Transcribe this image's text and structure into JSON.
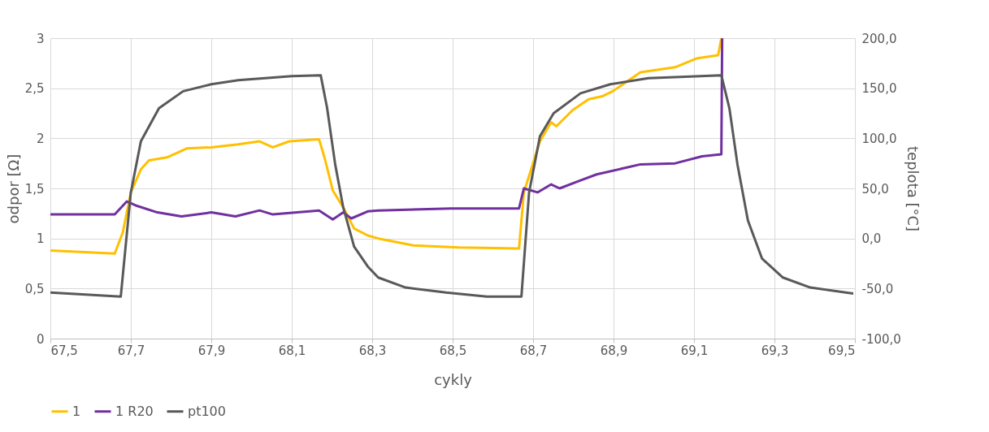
{
  "chart_data": {
    "type": "line",
    "xlabel": "cykly",
    "ylabel": "odpor [Ω]",
    "y2label": "teplota [°C]",
    "xlim": [
      67.5,
      69.5
    ],
    "ylim": [
      0,
      3
    ],
    "y2lim": [
      -100,
      200
    ],
    "xticks": [
      {
        "value": 67.5,
        "label": "67,5"
      },
      {
        "value": 67.7,
        "label": "67,7"
      },
      {
        "value": 67.9,
        "label": "67,9"
      },
      {
        "value": 68.1,
        "label": "68,1"
      },
      {
        "value": 68.3,
        "label": "68,3"
      },
      {
        "value": 68.5,
        "label": "68,5"
      },
      {
        "value": 68.7,
        "label": "68,7"
      },
      {
        "value": 68.9,
        "label": "68,9"
      },
      {
        "value": 69.1,
        "label": "69,1"
      },
      {
        "value": 69.3,
        "label": "69,3"
      },
      {
        "value": 69.5,
        "label": "69,5"
      }
    ],
    "yticks": [
      0,
      {
        "value": 0.5,
        "label": "0,5"
      },
      1,
      {
        "value": 1.5,
        "label": "1,5"
      },
      2,
      {
        "value": 2.5,
        "label": "2,5"
      },
      3
    ],
    "y2ticks": [
      {
        "value": -100,
        "label": "-100,0"
      },
      {
        "value": -50,
        "label": "-50,0"
      },
      {
        "value": 0,
        "label": "0,0"
      },
      {
        "value": 50,
        "label": "50,0"
      },
      {
        "value": 100,
        "label": "100,0"
      },
      {
        "value": 150,
        "label": "150,0"
      },
      {
        "value": 200,
        "label": "200,0"
      }
    ],
    "grid": true,
    "legend": "bottom",
    "line_style": "solid",
    "marker": "none",
    "series": [
      {
        "name": "1",
        "color": "#ffc000",
        "x": [
          67.5,
          67.66,
          67.68,
          67.7,
          67.725,
          67.745,
          67.79,
          67.84,
          67.9,
          67.967,
          68.02,
          68.053,
          68.094,
          68.168,
          68.182,
          68.202,
          68.228,
          68.255,
          68.289,
          68.315,
          68.403,
          68.516,
          68.665,
          68.677,
          68.717,
          68.745,
          68.758,
          68.798,
          68.838,
          68.872,
          68.898,
          68.967,
          69.053,
          69.108,
          69.16,
          69.168
        ],
        "values": [
          0.88,
          0.85,
          1.06,
          1.46,
          1.69,
          1.78,
          1.81,
          1.9,
          1.91,
          1.94,
          1.97,
          1.91,
          1.97,
          1.99,
          1.8,
          1.48,
          1.31,
          1.1,
          1.03,
          1.0,
          0.93,
          0.91,
          0.9,
          1.46,
          1.97,
          2.16,
          2.12,
          2.28,
          2.39,
          2.42,
          2.47,
          2.66,
          2.71,
          2.8,
          2.83,
          3.0
        ]
      },
      {
        "name": "1 R20",
        "color": "#7030a0",
        "x": [
          67.5,
          67.66,
          67.69,
          67.712,
          67.766,
          67.826,
          67.9,
          67.96,
          68.02,
          68.053,
          68.168,
          68.202,
          68.228,
          68.248,
          68.289,
          68.315,
          68.496,
          68.665,
          68.677,
          68.711,
          68.745,
          68.766,
          68.818,
          68.858,
          68.967,
          69.053,
          69.12,
          69.168,
          69.17
        ],
        "values": [
          1.24,
          1.24,
          1.37,
          1.33,
          1.26,
          1.22,
          1.26,
          1.22,
          1.28,
          1.24,
          1.28,
          1.19,
          1.26,
          1.2,
          1.27,
          1.28,
          1.3,
          1.3,
          1.5,
          1.46,
          1.54,
          1.5,
          1.58,
          1.64,
          1.74,
          1.75,
          1.82,
          1.84,
          3.0
        ]
      },
      {
        "name": "pt100",
        "color": "#595959",
        "axis": "y2",
        "x": [
          67.5,
          67.675,
          67.7,
          67.725,
          67.77,
          67.83,
          67.9,
          67.967,
          68.1,
          68.172,
          68.188,
          68.208,
          68.228,
          68.255,
          68.289,
          68.315,
          68.383,
          68.484,
          68.585,
          68.671,
          68.69,
          68.717,
          68.751,
          68.818,
          68.892,
          68.987,
          69.168,
          69.188,
          69.208,
          69.234,
          69.269,
          69.321,
          69.389,
          69.496
        ],
        "values": [
          -54,
          -58,
          46,
          97,
          130,
          147,
          154,
          158,
          162,
          163,
          130,
          74,
          31,
          -8,
          -28,
          -39,
          -49,
          -54,
          -58,
          -58,
          46,
          102,
          125,
          145,
          154,
          160,
          163,
          130,
          74,
          18,
          -20,
          -39,
          -49,
          -55
        ]
      }
    ]
  }
}
